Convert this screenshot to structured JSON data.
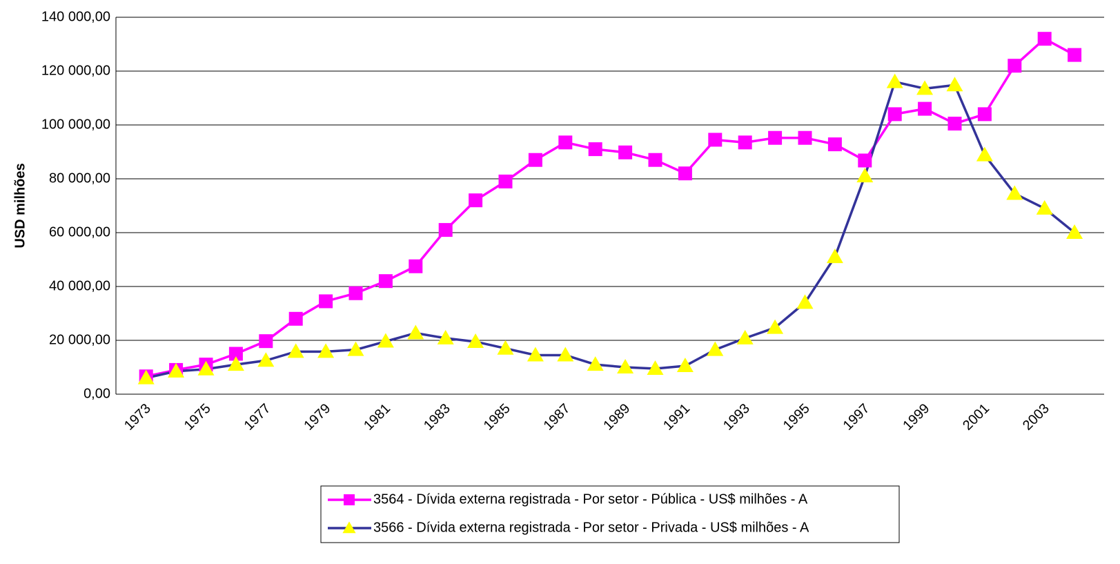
{
  "chart_data": {
    "type": "line",
    "y_label": "USD milhões",
    "categories": [
      "1973",
      null,
      "1975",
      null,
      "1977",
      null,
      "1979",
      null,
      "1981",
      null,
      "1983",
      null,
      "1985",
      null,
      "1987",
      null,
      "1989",
      null,
      "1991",
      null,
      "1993",
      null,
      "1995",
      null,
      "1997",
      null,
      "1999",
      null,
      "2001",
      null,
      "2003",
      null
    ],
    "series": [
      {
        "name": "3564 - Dívida externa registrada - Por setor - Pública - US$ milhões - A",
        "color": "#ff00ff",
        "marker": "square",
        "marker_color": "#ff00ff",
        "values": [
          6600,
          9000,
          11000,
          15000,
          19700,
          28000,
          34500,
          37500,
          42000,
          47500,
          61000,
          72000,
          79000,
          87000,
          93500,
          91000,
          89800,
          87000,
          82000,
          94500,
          93500,
          95200,
          95200,
          92800,
          86800,
          104000,
          106000,
          100500,
          104000,
          122000,
          132000,
          126000
        ]
      },
      {
        "name": "3566 - Dívida externa registrada - Por setor - Privada - US$ milhões - A",
        "color": "#333399",
        "marker": "triangle",
        "marker_color": "#ffff00",
        "values": [
          6000,
          8500,
          9300,
          11000,
          12500,
          15800,
          15800,
          16500,
          19600,
          22700,
          20800,
          19500,
          17000,
          14500,
          14500,
          11000,
          10000,
          9500,
          10500,
          16500,
          20800,
          24700,
          34000,
          51000,
          81000,
          116000,
          113500,
          114800,
          88800,
          74500,
          69000,
          60000
        ]
      }
    ],
    "ylim": [
      0,
      140000
    ],
    "yticks": [
      {
        "value": 0,
        "label": "0,00"
      },
      {
        "value": 20000,
        "label": "20 000,00"
      },
      {
        "value": 40000,
        "label": "40 000,00"
      },
      {
        "value": 60000,
        "label": "60 000,00"
      },
      {
        "value": 80000,
        "label": "80 000,00"
      },
      {
        "value": 100000,
        "label": "100 000,00"
      },
      {
        "value": 120000,
        "label": "120 000,00"
      },
      {
        "value": 140000,
        "label": "140 000,00"
      }
    ],
    "grid": true,
    "legend": "bottom"
  }
}
